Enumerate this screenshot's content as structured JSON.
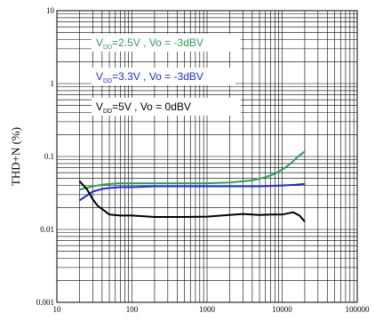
{
  "chart_data": {
    "type": "line",
    "xscale": "log",
    "yscale": "log",
    "xlim": [
      10,
      100000
    ],
    "ylim": [
      0.001,
      10
    ],
    "grid": true,
    "xlabel": "",
    "ylabel": "THD+N (%)",
    "xticks": [
      "10",
      "100",
      "1000",
      "10000",
      "100000"
    ],
    "yticks": [
      "10",
      "1",
      "0.1",
      "0.01",
      "0.001"
    ],
    "legend_placement": "upper-left",
    "series": [
      {
        "label_prefix": "V",
        "label_sub": "DD",
        "label_rest": "=2.5V    , Vo = -3dBV",
        "color": "#2aa05a",
        "x": [
          20,
          30,
          40,
          50,
          70,
          100,
          200,
          500,
          1000,
          2000,
          4000,
          6000,
          8000,
          10000,
          13000,
          16000,
          20000
        ],
        "y": [
          0.035,
          0.039,
          0.041,
          0.042,
          0.043,
          0.043,
          0.043,
          0.043,
          0.043,
          0.044,
          0.047,
          0.052,
          0.058,
          0.066,
          0.08,
          0.098,
          0.117
        ]
      },
      {
        "label_prefix": "V",
        "label_sub": "DD",
        "label_rest": "=3.3V    , Vo = -3dBV",
        "color": "#1b2be0",
        "x": [
          20,
          30,
          40,
          50,
          70,
          100,
          200,
          500,
          1000,
          2000,
          5000,
          10000,
          15000,
          20000
        ],
        "y": [
          0.025,
          0.033,
          0.036,
          0.037,
          0.038,
          0.038,
          0.039,
          0.039,
          0.039,
          0.039,
          0.039,
          0.04,
          0.041,
          0.042
        ]
      },
      {
        "label_prefix": "V",
        "label_sub": "DD",
        "label_rest": "=5V    , Vo = 0dBV",
        "color": "#000000",
        "x": [
          20,
          25,
          30,
          35,
          40,
          50,
          70,
          100,
          200,
          500,
          1000,
          2000,
          3000,
          5000,
          7000,
          10000,
          14000,
          17000,
          20000
        ],
        "y": [
          0.046,
          0.036,
          0.026,
          0.021,
          0.019,
          0.016,
          0.0155,
          0.0155,
          0.0148,
          0.0148,
          0.015,
          0.0158,
          0.0163,
          0.0158,
          0.016,
          0.016,
          0.0172,
          0.0155,
          0.0128
        ]
      }
    ]
  }
}
